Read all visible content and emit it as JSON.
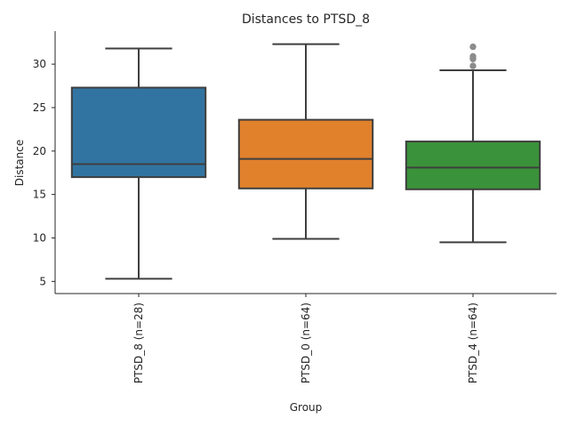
{
  "chart_data": {
    "type": "box",
    "title": "Distances to PTSD_8",
    "xlabel": "Group",
    "ylabel": "Distance",
    "ylim": [
      3.6,
      33.8
    ],
    "yticks": [
      5,
      10,
      15,
      20,
      25,
      30
    ],
    "grid": false,
    "legend": "none",
    "categories": [
      "PTSD_8 (n=28)",
      "PTSD_0 (n=64)",
      "PTSD_4 (n=64)"
    ],
    "boxes": [
      {
        "category": "PTSD_8 (n=28)",
        "color": "#3274a1",
        "whisker_low": 5.3,
        "q1": 17.0,
        "median": 18.5,
        "q3": 27.3,
        "whisker_high": 31.8,
        "outliers": []
      },
      {
        "category": "PTSD_0 (n=64)",
        "color": "#e1812c",
        "whisker_low": 9.9,
        "q1": 15.7,
        "median": 19.1,
        "q3": 23.6,
        "whisker_high": 32.3,
        "outliers": []
      },
      {
        "category": "PTSD_4 (n=64)",
        "color": "#3a923a",
        "whisker_low": 9.5,
        "q1": 15.6,
        "median": 18.1,
        "q3": 21.1,
        "whisker_high": 29.3,
        "outliers": [
          29.8,
          30.6,
          30.9,
          32.0
        ]
      }
    ]
  }
}
